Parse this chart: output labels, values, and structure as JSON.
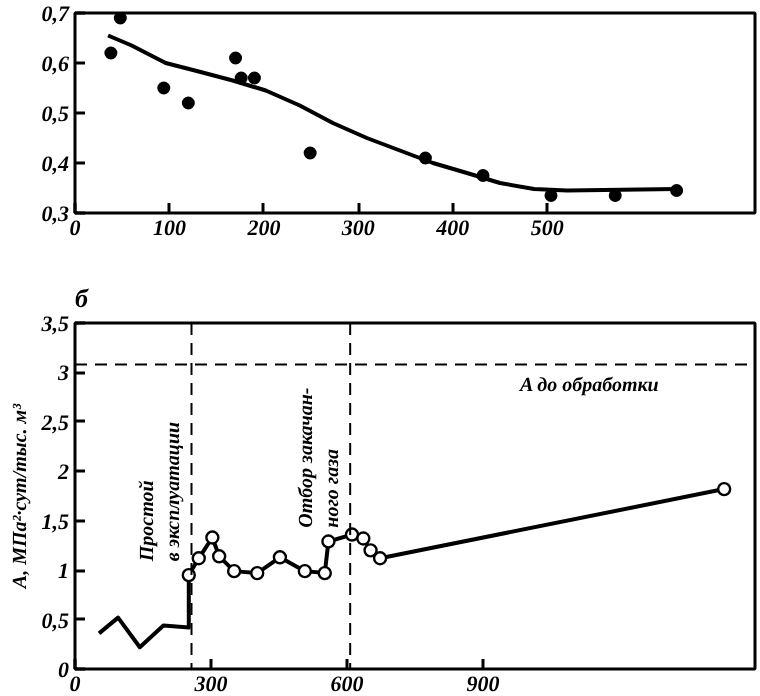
{
  "chart_data": [
    {
      "type": "scatter",
      "xlim": [
        0,
        720
      ],
      "ylim": [
        0.3,
        0.7
      ],
      "xticks": [
        0,
        100,
        200,
        300,
        400,
        500
      ],
      "yticks": [
        {
          "value": 0.3,
          "label": "0,3"
        },
        {
          "value": 0.4,
          "label": "0,4"
        },
        {
          "value": 0.5,
          "label": "0,5"
        },
        {
          "value": 0.6,
          "label": "0,6"
        },
        {
          "value": 0.7,
          "label": "0,7"
        }
      ],
      "series": [
        {
          "type": "scatter",
          "color": "#000000",
          "marker": "circle",
          "x": [
            38,
            48,
            94,
            120,
            170,
            176,
            190,
            249,
            371,
            432,
            504,
            572,
            637
          ],
          "values": [
            0.62,
            0.69,
            0.55,
            0.52,
            0.61,
            0.57,
            0.57,
            0.42,
            0.41,
            0.375,
            0.335,
            0.335,
            0.345
          ]
        },
        {
          "type": "line",
          "color": "#000000",
          "x": [
            35,
            60,
            96,
            131,
            167,
            202,
            238,
            273,
            309,
            344,
            379,
            415,
            450,
            486,
            521,
            637
          ],
          "values": [
            0.655,
            0.635,
            0.6,
            0.583,
            0.565,
            0.545,
            0.515,
            0.48,
            0.45,
            0.425,
            0.4,
            0.38,
            0.36,
            0.348,
            0.345,
            0.348
          ]
        }
      ]
    },
    {
      "type": "line",
      "title": "б",
      "ylabel": "A, МПа²·сут/тыс. м³",
      "xlim": [
        0,
        1500
      ],
      "ylim": [
        0,
        3.5
      ],
      "xticks": [
        0,
        300,
        600,
        900
      ],
      "yticks": [
        0,
        {
          "value": 0.5,
          "label": "0,5"
        },
        1,
        {
          "value": 1.5,
          "label": "1,5"
        },
        2,
        {
          "value": 2.5,
          "label": "2,5"
        },
        3,
        {
          "value": 3.5,
          "label": "3,5"
        }
      ],
      "series": [
        {
          "color": "#000000",
          "x": [
            53,
            95,
            143,
            195,
            251,
            251
          ],
          "values": [
            0.36,
            0.52,
            0.22,
            0.44,
            0.42,
            0.95
          ]
        },
        {
          "color": "#000000",
          "marker": "circle",
          "x": [
            251,
            273,
            303,
            318,
            351,
            402,
            452,
            507,
            551,
            559,
            611,
            636,
            652,
            673,
            1432
          ],
          "values": [
            0.95,
            1.12,
            1.33,
            1.14,
            0.99,
            0.97,
            1.13,
            0.99,
            0.97,
            1.29,
            1.36,
            1.32,
            1.2,
            1.12,
            1.82
          ]
        }
      ],
      "ref_lines": [
        {
          "axis": "y",
          "value": 3.08,
          "label": "A до обработки",
          "line_style": "dashed"
        },
        {
          "axis": "x",
          "value": 257,
          "label": "Простой\nв эксплуатации",
          "line_style": "dashed"
        },
        {
          "axis": "x",
          "value": 607,
          "label": "Отбор закачан-\nного газа",
          "line_style": "dashed"
        }
      ]
    }
  ]
}
